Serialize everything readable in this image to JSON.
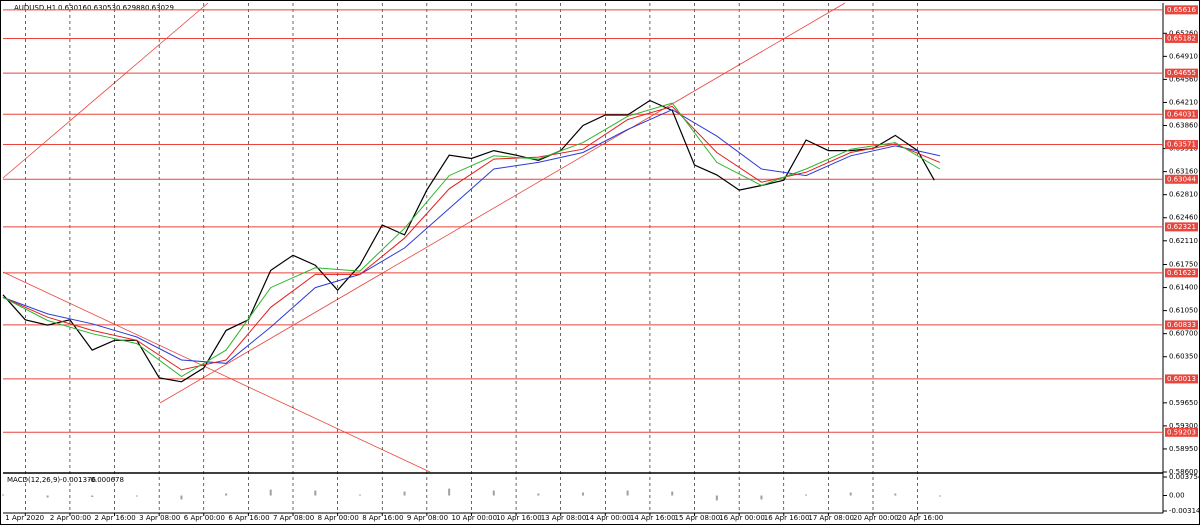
{
  "chart_data": {
    "type": "line",
    "symbol": "AUDUSD,H1",
    "ohlc": [
      0.63016,
      0.63053,
      0.62988,
      0.63029
    ],
    "xlim": [
      0,
      416
    ],
    "ylim": [
      0.586,
      0.6572
    ],
    "xticks": [
      {
        "value": 8,
        "label": "1 Apr 2020"
      },
      {
        "value": 24,
        "label": "2 Apr 00:00"
      },
      {
        "value": 40,
        "label": "2 Apr 16:00"
      },
      {
        "value": 56,
        "label": "3 Apr 08:00"
      },
      {
        "value": 72,
        "label": "6 Apr 00:00"
      },
      {
        "value": 88,
        "label": "6 Apr 16:00"
      },
      {
        "value": 104,
        "label": "7 Apr 08:00"
      },
      {
        "value": 120,
        "label": "8 Apr 00:00"
      },
      {
        "value": 136,
        "label": "8 Apr 16:00"
      },
      {
        "value": 152,
        "label": "9 Apr 08:00"
      },
      {
        "value": 168,
        "label": "10 Apr 00:00"
      },
      {
        "value": 184,
        "label": "10 Apr 16:00"
      },
      {
        "value": 200,
        "label": "13 Apr 08:00"
      },
      {
        "value": 216,
        "label": "14 Apr 00:00"
      },
      {
        "value": 232,
        "label": "14 Apr 16:00"
      },
      {
        "value": 248,
        "label": "15 Apr 08:00"
      },
      {
        "value": 264,
        "label": "16 Apr 00:00"
      },
      {
        "value": 280,
        "label": "16 Apr 16:00"
      },
      {
        "value": 296,
        "label": "17 Apr 08:00"
      },
      {
        "value": 312,
        "label": "20 Apr 00:00"
      },
      {
        "value": 328,
        "label": "20 Apr 16:00"
      }
    ],
    "yticks": [
      {
        "value": 0.6526,
        "label": "0.65260"
      },
      {
        "value": 0.6491,
        "label": "0.64910"
      },
      {
        "value": 0.6456,
        "label": "0.64560"
      },
      {
        "value": 0.6421,
        "label": "0.64210"
      },
      {
        "value": 0.6386,
        "label": "0.63860"
      },
      {
        "value": 0.6351,
        "label": "0.63510"
      },
      {
        "value": 0.6316,
        "label": "0.63160"
      },
      {
        "value": 0.6281,
        "label": "0.62810"
      },
      {
        "value": 0.6246,
        "label": "0.62460"
      },
      {
        "value": 0.6211,
        "label": "0.62110"
      },
      {
        "value": 0.6175,
        "label": "0.61750"
      },
      {
        "value": 0.614,
        "label": "0.61400"
      },
      {
        "value": 0.6105,
        "label": "0.61050"
      },
      {
        "value": 0.607,
        "label": "0.60700"
      },
      {
        "value": 0.6035,
        "label": "0.60350"
      },
      {
        "value": 0.5965,
        "label": "0.59650"
      },
      {
        "value": 0.593,
        "label": "0.59300"
      },
      {
        "value": 0.5895,
        "label": "0.58950"
      },
      {
        "value": 0.586,
        "label": "0.58600"
      }
    ],
    "levels": [
      0.65616,
      0.65182,
      0.64655,
      0.64031,
      0.63571,
      0.63044,
      0.62321,
      0.61623,
      0.60833,
      0.60013,
      0.59203
    ],
    "level_color": "#e8453c",
    "grid": true,
    "series": [
      {
        "color": "#000000",
        "x": [
          0,
          8,
          16,
          24,
          32,
          40,
          48,
          56,
          64,
          72,
          80,
          88,
          96,
          104,
          112,
          120,
          128,
          136,
          144,
          152,
          160,
          168,
          176,
          184,
          192,
          200,
          208,
          216,
          224,
          232,
          240,
          248,
          256,
          264,
          272,
          280,
          288,
          296,
          304,
          312,
          320,
          328,
          334
        ],
        "values": [
          0.6129,
          0.6091,
          0.6083,
          0.6091,
          0.6045,
          0.606,
          0.606,
          0.6003,
          0.5997,
          0.6018,
          0.6075,
          0.6091,
          0.6166,
          0.6189,
          0.6174,
          0.6136,
          0.6174,
          0.6235,
          0.622,
          0.6288,
          0.6341,
          0.6336,
          0.6348,
          0.6341,
          0.6333,
          0.6348,
          0.6386,
          0.6402,
          0.6402,
          0.6424,
          0.6409,
          0.6326,
          0.6311,
          0.6288,
          0.6295,
          0.6303,
          0.6364,
          0.6348,
          0.6348,
          0.6351,
          0.6371,
          0.6348,
          0.6303
        ]
      },
      {
        "color": "#2d3bd6",
        "x": [
          0,
          16,
          32,
          48,
          64,
          80,
          96,
          112,
          128,
          144,
          160,
          176,
          192,
          208,
          224,
          240,
          256,
          272,
          288,
          304,
          320,
          336
        ],
        "values": [
          0.6125,
          0.61,
          0.6085,
          0.6065,
          0.603,
          0.6025,
          0.608,
          0.614,
          0.616,
          0.62,
          0.626,
          0.632,
          0.633,
          0.6345,
          0.638,
          0.641,
          0.637,
          0.632,
          0.631,
          0.634,
          0.6355,
          0.634
        ]
      },
      {
        "color": "#e02020",
        "x": [
          0,
          16,
          32,
          48,
          64,
          80,
          96,
          112,
          128,
          144,
          160,
          176,
          192,
          208,
          224,
          240,
          256,
          272,
          288,
          304,
          320,
          336
        ],
        "values": [
          0.6125,
          0.6095,
          0.6075,
          0.606,
          0.6015,
          0.603,
          0.611,
          0.616,
          0.616,
          0.6215,
          0.629,
          0.6335,
          0.6338,
          0.635,
          0.6395,
          0.6415,
          0.6345,
          0.63,
          0.6315,
          0.6345,
          0.6358,
          0.633
        ]
      },
      {
        "color": "#2bb52b",
        "x": [
          0,
          16,
          32,
          48,
          64,
          80,
          96,
          112,
          128,
          144,
          160,
          176,
          192,
          208,
          224,
          240,
          256,
          272,
          288,
          304,
          320,
          336
        ],
        "values": [
          0.6125,
          0.609,
          0.607,
          0.6055,
          0.6005,
          0.6045,
          0.614,
          0.617,
          0.6165,
          0.623,
          0.631,
          0.634,
          0.6335,
          0.636,
          0.64,
          0.642,
          0.633,
          0.6295,
          0.632,
          0.635,
          0.636,
          0.632
        ]
      }
    ],
    "macd": {
      "label": "MACD(12,26,9)",
      "main": -0.001376,
      "signal": -0.000678,
      "ylim": [
        -0.003141,
        0.003754
      ],
      "yticks": [
        0.003754,
        {
          "value": 0,
          "label": "0.00"
        },
        -0.003141
      ],
      "color": "#a0a0a0",
      "x": [
        0,
        16,
        32,
        48,
        64,
        80,
        96,
        112,
        128,
        144,
        160,
        176,
        192,
        208,
        224,
        240,
        256,
        272,
        288,
        304,
        320,
        336
      ],
      "values": [
        0.0002,
        -0.0004,
        -0.0003,
        -0.0002,
        -0.0008,
        0.0004,
        0.0012,
        0.001,
        0.0002,
        0.0008,
        0.0014,
        0.001,
        0.0004,
        0.0006,
        0.001,
        0.0008,
        -0.001,
        -0.0008,
        0.0002,
        0.0006,
        0.0004,
        -0.0002
      ]
    }
  }
}
